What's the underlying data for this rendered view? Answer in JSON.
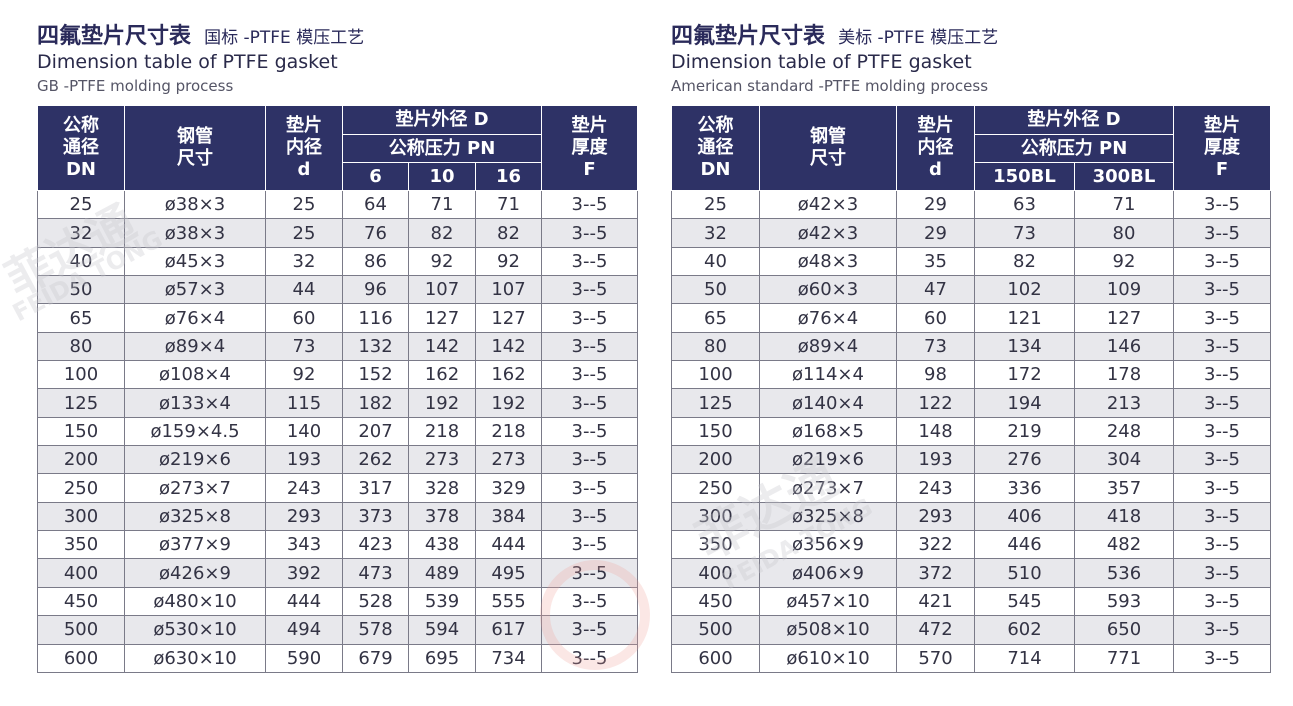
{
  "left": {
    "title_cn": "四氟垫片尺寸表",
    "title_sub": "国标 -PTFE 模压工艺",
    "title_en": "Dimension table of PTFE gasket",
    "title_en2": "GB -PTFE molding process",
    "headers": {
      "dn": [
        "公称",
        "通径",
        "DN"
      ],
      "pipe": [
        "钢管",
        "尺寸"
      ],
      "inner": [
        "垫片",
        "内径",
        "d"
      ],
      "outer": "垫片外径 D",
      "pressure": "公称压力 PN",
      "p1": "6",
      "p2": "10",
      "p3": "16",
      "thick": [
        "垫片",
        "厚度",
        "F"
      ]
    },
    "rows": [
      [
        "25",
        "ø38×3",
        "25",
        "64",
        "71",
        "71",
        "3--5"
      ],
      [
        "32",
        "ø38×3",
        "25",
        "76",
        "82",
        "82",
        "3--5"
      ],
      [
        "40",
        "ø45×3",
        "32",
        "86",
        "92",
        "92",
        "3--5"
      ],
      [
        "50",
        "ø57×3",
        "44",
        "96",
        "107",
        "107",
        "3--5"
      ],
      [
        "65",
        "ø76×4",
        "60",
        "116",
        "127",
        "127",
        "3--5"
      ],
      [
        "80",
        "ø89×4",
        "73",
        "132",
        "142",
        "142",
        "3--5"
      ],
      [
        "100",
        "ø108×4",
        "92",
        "152",
        "162",
        "162",
        "3--5"
      ],
      [
        "125",
        "ø133×4",
        "115",
        "182",
        "192",
        "192",
        "3--5"
      ],
      [
        "150",
        "ø159×4.5",
        "140",
        "207",
        "218",
        "218",
        "3--5"
      ],
      [
        "200",
        "ø219×6",
        "193",
        "262",
        "273",
        "273",
        "3--5"
      ],
      [
        "250",
        "ø273×7",
        "243",
        "317",
        "328",
        "329",
        "3--5"
      ],
      [
        "300",
        "ø325×8",
        "293",
        "373",
        "378",
        "384",
        "3--5"
      ],
      [
        "350",
        "ø377×9",
        "343",
        "423",
        "438",
        "444",
        "3--5"
      ],
      [
        "400",
        "ø426×9",
        "392",
        "473",
        "489",
        "495",
        "3--5"
      ],
      [
        "450",
        "ø480×10",
        "444",
        "528",
        "539",
        "555",
        "3--5"
      ],
      [
        "500",
        "ø530×10",
        "494",
        "578",
        "594",
        "617",
        "3--5"
      ],
      [
        "600",
        "ø630×10",
        "590",
        "679",
        "695",
        "734",
        "3--5"
      ]
    ]
  },
  "right": {
    "title_cn": "四氟垫片尺寸表",
    "title_sub": "美标 -PTFE 模压工艺",
    "title_en": "Dimension table of PTFE gasket",
    "title_en2": "American standard -PTFE molding process",
    "headers": {
      "dn": [
        "公称",
        "通径",
        "DN"
      ],
      "pipe": [
        "钢管",
        "尺寸"
      ],
      "inner": [
        "垫片",
        "内径",
        "d"
      ],
      "outer": "垫片外径 D",
      "pressure": "公称压力 PN",
      "p1": "150BL",
      "p2": "300BL",
      "thick": [
        "垫片",
        "厚度",
        "F"
      ]
    },
    "rows": [
      [
        "25",
        "ø42×3",
        "29",
        "63",
        "71",
        "3--5"
      ],
      [
        "32",
        "ø42×3",
        "29",
        "73",
        "80",
        "3--5"
      ],
      [
        "40",
        "ø48×3",
        "35",
        "82",
        "92",
        "3--5"
      ],
      [
        "50",
        "ø60×3",
        "47",
        "102",
        "109",
        "3--5"
      ],
      [
        "65",
        "ø76×4",
        "60",
        "121",
        "127",
        "3--5"
      ],
      [
        "80",
        "ø89×4",
        "73",
        "134",
        "146",
        "3--5"
      ],
      [
        "100",
        "ø114×4",
        "98",
        "172",
        "178",
        "3--5"
      ],
      [
        "125",
        "ø140×4",
        "122",
        "194",
        "213",
        "3--5"
      ],
      [
        "150",
        "ø168×5",
        "148",
        "219",
        "248",
        "3--5"
      ],
      [
        "200",
        "ø219×6",
        "193",
        "276",
        "304",
        "3--5"
      ],
      [
        "250",
        "ø273×7",
        "243",
        "336",
        "357",
        "3--5"
      ],
      [
        "300",
        "ø325×8",
        "293",
        "406",
        "418",
        "3--5"
      ],
      [
        "350",
        "ø356×9",
        "322",
        "446",
        "482",
        "3--5"
      ],
      [
        "400",
        "ø406×9",
        "372",
        "510",
        "536",
        "3--5"
      ],
      [
        "450",
        "ø457×10",
        "421",
        "545",
        "593",
        "3--5"
      ],
      [
        "500",
        "ø508×10",
        "472",
        "602",
        "650",
        "3--5"
      ],
      [
        "600",
        "ø610×10",
        "570",
        "714",
        "771",
        "3--5"
      ]
    ]
  },
  "watermark": {
    "cn": "菲达通",
    "en": "FEIDA TONG"
  }
}
